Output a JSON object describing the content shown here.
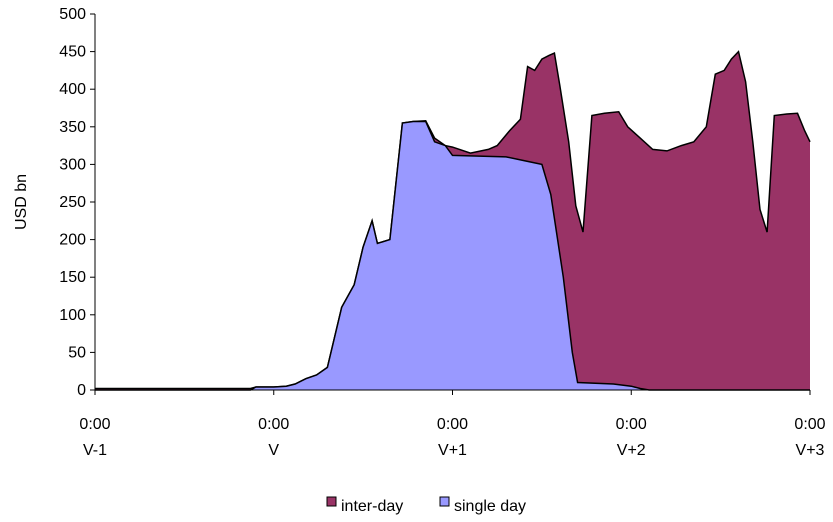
{
  "chart_data": {
    "type": "area",
    "ylabel": "USD bn",
    "ylim": [
      0,
      500
    ],
    "y_ticks": [
      "0",
      "50",
      "100",
      "150",
      "200",
      "250",
      "300",
      "350",
      "400",
      "450",
      "500"
    ],
    "x_range": [
      0,
      4
    ],
    "x_ticks": [
      {
        "time": "0:00",
        "day": "V-1"
      },
      {
        "time": "0:00",
        "day": "V"
      },
      {
        "time": "0:00",
        "day": "V+1"
      },
      {
        "time": "0:00",
        "day": "V+2"
      },
      {
        "time": "0:00",
        "day": "V+3"
      }
    ],
    "legend": "bottom-center",
    "stacking": "overlapping",
    "series": [
      {
        "name": "inter-day",
        "color": "#993366",
        "points": [
          [
            0.0,
            2
          ],
          [
            0.87,
            2
          ],
          [
            0.9,
            4
          ],
          [
            1.0,
            4
          ],
          [
            1.07,
            5
          ],
          [
            1.12,
            8
          ],
          [
            1.18,
            15
          ],
          [
            1.24,
            20
          ],
          [
            1.3,
            30
          ],
          [
            1.38,
            110
          ],
          [
            1.45,
            140
          ],
          [
            1.5,
            190
          ],
          [
            1.55,
            225
          ],
          [
            1.58,
            195
          ],
          [
            1.65,
            200
          ],
          [
            1.72,
            355
          ],
          [
            1.78,
            357
          ],
          [
            1.85,
            358
          ],
          [
            1.9,
            335
          ],
          [
            1.96,
            325
          ],
          [
            2.0,
            323
          ],
          [
            2.1,
            315
          ],
          [
            2.2,
            320
          ],
          [
            2.25,
            325
          ],
          [
            2.32,
            345
          ],
          [
            2.38,
            360
          ],
          [
            2.42,
            430
          ],
          [
            2.46,
            425
          ],
          [
            2.5,
            440
          ],
          [
            2.54,
            445
          ],
          [
            2.57,
            448
          ],
          [
            2.6,
            405
          ],
          [
            2.65,
            330
          ],
          [
            2.69,
            245
          ],
          [
            2.73,
            210
          ],
          [
            2.78,
            365
          ],
          [
            2.85,
            368
          ],
          [
            2.93,
            370
          ],
          [
            2.98,
            350
          ],
          [
            3.05,
            335
          ],
          [
            3.12,
            320
          ],
          [
            3.2,
            318
          ],
          [
            3.28,
            325
          ],
          [
            3.35,
            330
          ],
          [
            3.42,
            350
          ],
          [
            3.47,
            420
          ],
          [
            3.52,
            425
          ],
          [
            3.56,
            440
          ],
          [
            3.6,
            450
          ],
          [
            3.64,
            410
          ],
          [
            3.68,
            330
          ],
          [
            3.72,
            240
          ],
          [
            3.76,
            210
          ],
          [
            3.8,
            365
          ],
          [
            3.87,
            367
          ],
          [
            3.93,
            368
          ],
          [
            3.97,
            345
          ],
          [
            4.0,
            330
          ]
        ]
      },
      {
        "name": "single day",
        "color": "#9999ff",
        "points": [
          [
            0.0,
            0
          ],
          [
            0.87,
            0
          ],
          [
            0.9,
            4
          ],
          [
            1.0,
            4
          ],
          [
            1.07,
            5
          ],
          [
            1.12,
            8
          ],
          [
            1.18,
            15
          ],
          [
            1.24,
            20
          ],
          [
            1.3,
            30
          ],
          [
            1.38,
            110
          ],
          [
            1.45,
            140
          ],
          [
            1.5,
            190
          ],
          [
            1.55,
            225
          ],
          [
            1.58,
            195
          ],
          [
            1.65,
            200
          ],
          [
            1.72,
            355
          ],
          [
            1.78,
            357
          ],
          [
            1.85,
            357
          ],
          [
            1.9,
            330
          ],
          [
            1.96,
            325
          ],
          [
            2.0,
            312
          ],
          [
            2.3,
            310
          ],
          [
            2.4,
            305
          ],
          [
            2.5,
            300
          ],
          [
            2.55,
            260
          ],
          [
            2.62,
            150
          ],
          [
            2.67,
            50
          ],
          [
            2.7,
            10
          ],
          [
            2.9,
            8
          ],
          [
            3.0,
            5
          ],
          [
            3.05,
            2
          ],
          [
            3.1,
            0
          ],
          [
            4.0,
            0
          ]
        ]
      }
    ]
  }
}
